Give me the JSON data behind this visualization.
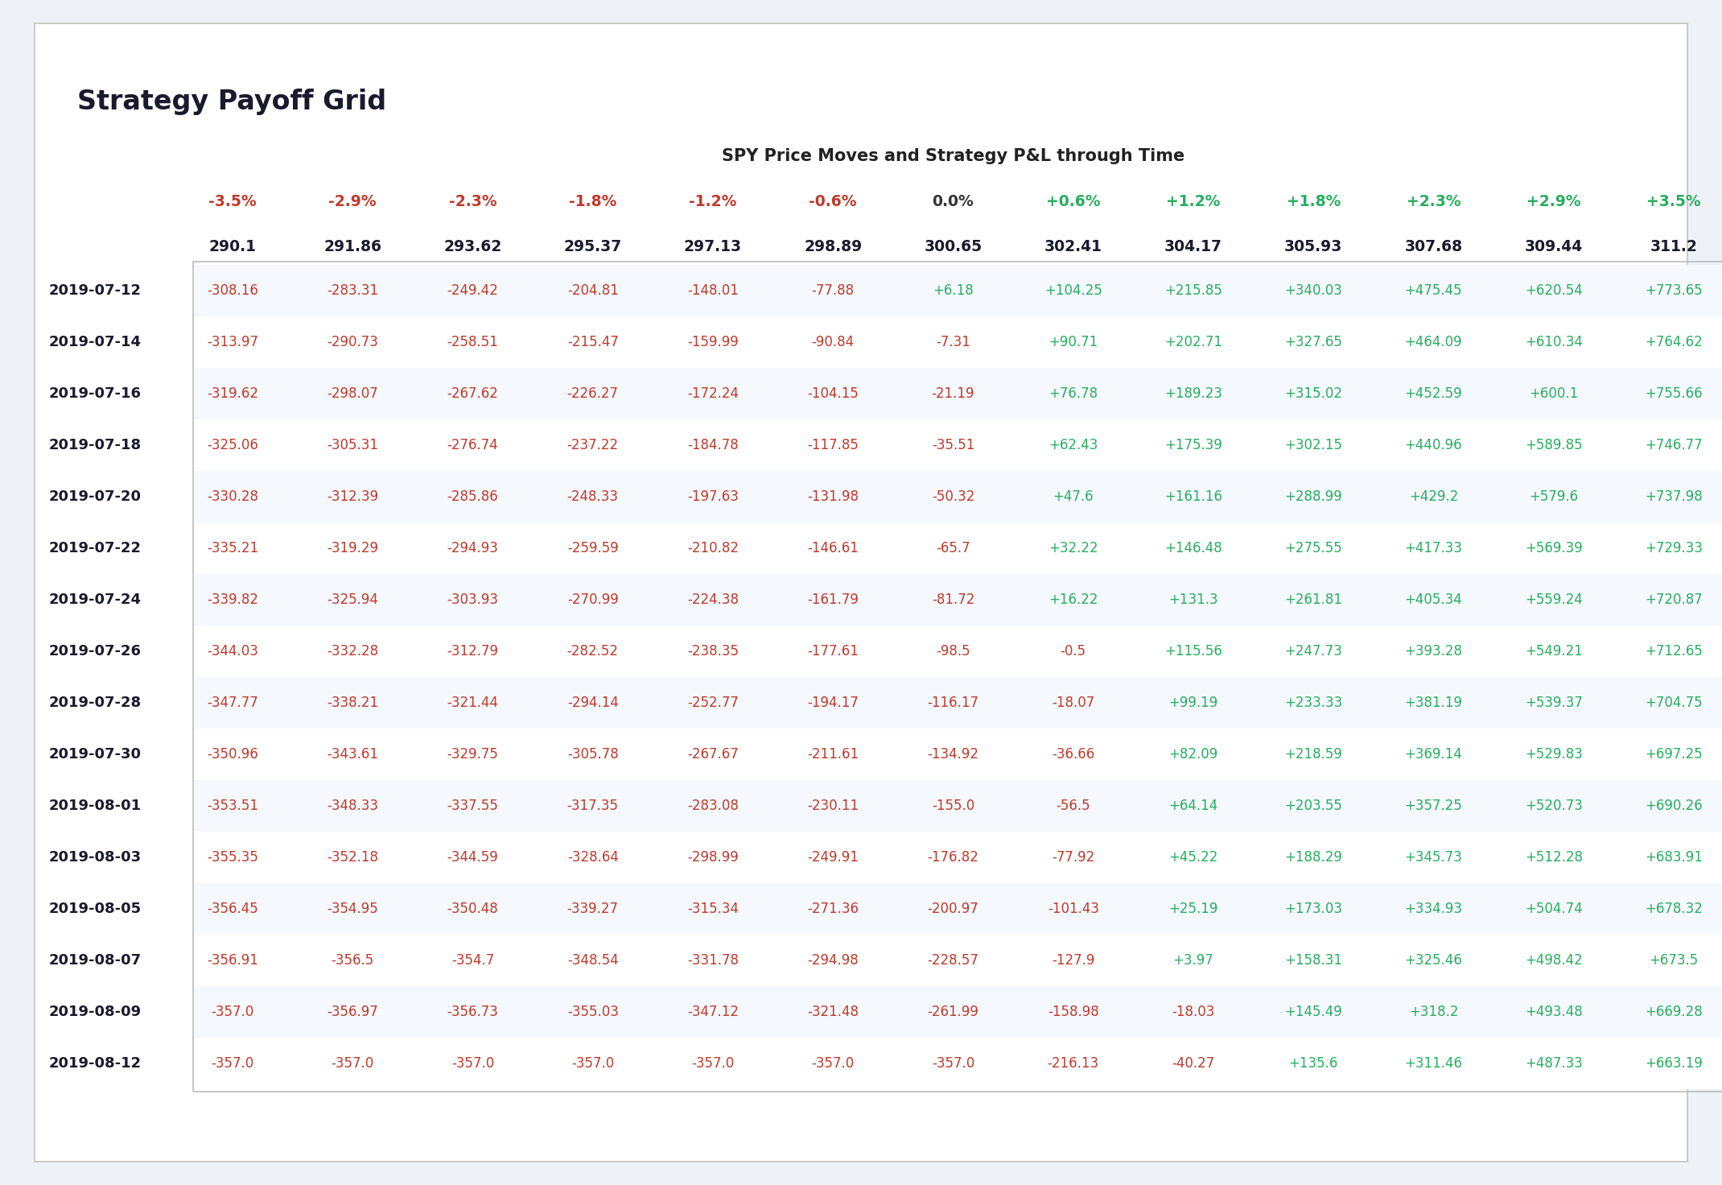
{
  "title": "Strategy Payoff Grid",
  "subtitle": "SPY Price Moves and Strategy P&L through Time",
  "col_pct_headers": [
    "-3.5%",
    "-2.9%",
    "-2.3%",
    "-1.8%",
    "-1.2%",
    "-0.6%",
    "0.0%",
    "+0.6%",
    "+1.2%",
    "+1.8%",
    "+2.3%",
    "+2.9%",
    "+3.5%"
  ],
  "col_price_headers": [
    "290.1",
    "291.86",
    "293.62",
    "295.37",
    "297.13",
    "298.89",
    "300.65",
    "302.41",
    "304.17",
    "305.93",
    "307.68",
    "309.44",
    "311.2"
  ],
  "row_dates": [
    "2019-07-12",
    "2019-07-14",
    "2019-07-16",
    "2019-07-18",
    "2019-07-20",
    "2019-07-22",
    "2019-07-24",
    "2019-07-26",
    "2019-07-28",
    "2019-07-30",
    "2019-08-01",
    "2019-08-03",
    "2019-08-05",
    "2019-08-07",
    "2019-08-09",
    "2019-08-12"
  ],
  "data": [
    [
      -308.16,
      -283.31,
      -249.42,
      -204.81,
      -148.01,
      -77.88,
      6.18,
      104.25,
      215.85,
      340.03,
      475.45,
      620.54,
      773.65
    ],
    [
      -313.97,
      -290.73,
      -258.51,
      -215.47,
      -159.99,
      -90.84,
      -7.31,
      90.71,
      202.71,
      327.65,
      464.09,
      610.34,
      764.62
    ],
    [
      -319.62,
      -298.07,
      -267.62,
      -226.27,
      -172.24,
      -104.15,
      -21.19,
      76.78,
      189.23,
      315.02,
      452.59,
      600.1,
      755.66
    ],
    [
      -325.06,
      -305.31,
      -276.74,
      -237.22,
      -184.78,
      -117.85,
      -35.51,
      62.43,
      175.39,
      302.15,
      440.96,
      589.85,
      746.77
    ],
    [
      -330.28,
      -312.39,
      -285.86,
      -248.33,
      -197.63,
      -131.98,
      -50.32,
      47.6,
      161.16,
      288.99,
      429.2,
      579.6,
      737.98
    ],
    [
      -335.21,
      -319.29,
      -294.93,
      -259.59,
      -210.82,
      -146.61,
      -65.7,
      32.22,
      146.48,
      275.55,
      417.33,
      569.39,
      729.33
    ],
    [
      -339.82,
      -325.94,
      -303.93,
      -270.99,
      -224.38,
      -161.79,
      -81.72,
      16.22,
      131.3,
      261.81,
      405.34,
      559.24,
      720.87
    ],
    [
      -344.03,
      -332.28,
      -312.79,
      -282.52,
      -238.35,
      -177.61,
      -98.5,
      -0.5,
      115.56,
      247.73,
      393.28,
      549.21,
      712.65
    ],
    [
      -347.77,
      -338.21,
      -321.44,
      -294.14,
      -252.77,
      -194.17,
      -116.17,
      -18.07,
      99.19,
      233.33,
      381.19,
      539.37,
      704.75
    ],
    [
      -350.96,
      -343.61,
      -329.75,
      -305.78,
      -267.67,
      -211.61,
      -134.92,
      -36.66,
      82.09,
      218.59,
      369.14,
      529.83,
      697.25
    ],
    [
      -353.51,
      -348.33,
      -337.55,
      -317.35,
      -283.08,
      -230.11,
      -155.0,
      -56.5,
      64.14,
      203.55,
      357.25,
      520.73,
      690.26
    ],
    [
      -355.35,
      -352.18,
      -344.59,
      -328.64,
      -298.99,
      -249.91,
      -176.82,
      -77.92,
      45.22,
      188.29,
      345.73,
      512.28,
      683.91
    ],
    [
      -356.45,
      -354.95,
      -350.48,
      -339.27,
      -315.34,
      -271.36,
      -200.97,
      -101.43,
      25.19,
      173.03,
      334.93,
      504.74,
      678.32
    ],
    [
      -356.91,
      -356.5,
      -354.7,
      -348.54,
      -331.78,
      -294.98,
      -228.57,
      -127.9,
      3.97,
      158.31,
      325.46,
      498.42,
      673.5
    ],
    [
      -357.0,
      -356.97,
      -356.73,
      -355.03,
      -347.12,
      -321.48,
      -261.99,
      -158.98,
      -18.03,
      145.49,
      318.2,
      493.48,
      669.28
    ],
    [
      -357.0,
      -357.0,
      -357.0,
      -357.0,
      -357.0,
      -357.0,
      -357.0,
      -216.13,
      -40.27,
      135.6,
      311.46,
      487.33,
      663.19
    ]
  ],
  "background_color": "#eef2f7",
  "card_color": "#ffffff",
  "title_color": "#1a1a2e",
  "subtitle_color": "#222222",
  "negative_color": "#c0392b",
  "positive_color": "#27ae60",
  "neutral_color": "#333333",
  "header_pct_neg_color": "#c0392b",
  "header_pct_pos_color": "#27ae60",
  "header_pct_neutral_color": "#333333",
  "date_color": "#1a1a2e",
  "border_color": "#bbbbbb"
}
